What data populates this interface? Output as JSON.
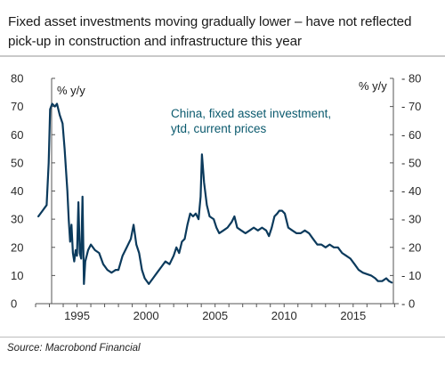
{
  "title": "Fixed asset investments moving gradually lower – have not reflected pick-up in construction and infrastructure this year",
  "source": "Source: Macrobond Financial",
  "chart_data": {
    "type": "line",
    "ylabel_left": "% y/y",
    "ylabel_right": "% y/y",
    "ylim": [
      0,
      80
    ],
    "y_ticks": [
      0,
      10,
      20,
      30,
      40,
      50,
      60,
      70,
      80
    ],
    "x_ticks": [
      "1995",
      "2000",
      "2005",
      "2010",
      "2015"
    ],
    "x_tick_values": [
      1995,
      2000,
      2005,
      2010,
      2015
    ],
    "xlim": [
      1992,
      2018.3
    ],
    "grid": false,
    "series": [
      {
        "name": "China, fixed asset investment, ytd, current prices",
        "color": "#0b3a5c",
        "points": [
          [
            1992.2,
            31
          ],
          [
            1992.5,
            33
          ],
          [
            1992.8,
            35
          ],
          [
            1992.95,
            50
          ],
          [
            1993.05,
            69
          ],
          [
            1993.2,
            71
          ],
          [
            1993.4,
            70
          ],
          [
            1993.55,
            71
          ],
          [
            1993.75,
            67
          ],
          [
            1993.95,
            64
          ],
          [
            1994.1,
            55
          ],
          [
            1994.3,
            40
          ],
          [
            1994.4,
            30
          ],
          [
            1994.5,
            22
          ],
          [
            1994.6,
            28
          ],
          [
            1994.7,
            18
          ],
          [
            1994.8,
            15
          ],
          [
            1994.9,
            19
          ],
          [
            1995.0,
            17
          ],
          [
            1995.1,
            36
          ],
          [
            1995.2,
            18
          ],
          [
            1995.3,
            16
          ],
          [
            1995.4,
            38
          ],
          [
            1995.5,
            7
          ],
          [
            1995.6,
            15
          ],
          [
            1995.8,
            19
          ],
          [
            1996.0,
            21
          ],
          [
            1996.3,
            19
          ],
          [
            1996.6,
            18
          ],
          [
            1996.9,
            14
          ],
          [
            1997.2,
            12
          ],
          [
            1997.5,
            11
          ],
          [
            1997.8,
            12
          ],
          [
            1998.0,
            12
          ],
          [
            1998.3,
            17
          ],
          [
            1998.6,
            20
          ],
          [
            1998.9,
            23
          ],
          [
            1999.1,
            28
          ],
          [
            1999.3,
            21
          ],
          [
            1999.5,
            18
          ],
          [
            1999.7,
            12
          ],
          [
            1999.9,
            9
          ],
          [
            2000.2,
            7
          ],
          [
            2000.5,
            9
          ],
          [
            2000.8,
            11
          ],
          [
            2001.1,
            13
          ],
          [
            2001.4,
            15
          ],
          [
            2001.7,
            14
          ],
          [
            2002.0,
            17
          ],
          [
            2002.2,
            20
          ],
          [
            2002.4,
            18
          ],
          [
            2002.6,
            22
          ],
          [
            2002.8,
            23
          ],
          [
            2003.0,
            28
          ],
          [
            2003.2,
            32
          ],
          [
            2003.4,
            31
          ],
          [
            2003.6,
            32
          ],
          [
            2003.8,
            30
          ],
          [
            2003.95,
            38
          ],
          [
            2004.05,
            53
          ],
          [
            2004.2,
            43
          ],
          [
            2004.4,
            35
          ],
          [
            2004.6,
            31
          ],
          [
            2004.9,
            30
          ],
          [
            2005.1,
            27
          ],
          [
            2005.3,
            25
          ],
          [
            2005.6,
            26
          ],
          [
            2005.9,
            27
          ],
          [
            2006.2,
            29
          ],
          [
            2006.4,
            31
          ],
          [
            2006.6,
            27
          ],
          [
            2006.9,
            26
          ],
          [
            2007.2,
            25
          ],
          [
            2007.5,
            26
          ],
          [
            2007.8,
            27
          ],
          [
            2008.1,
            26
          ],
          [
            2008.4,
            27
          ],
          [
            2008.7,
            26
          ],
          [
            2008.9,
            24
          ],
          [
            2009.1,
            27
          ],
          [
            2009.3,
            31
          ],
          [
            2009.5,
            32
          ],
          [
            2009.65,
            33
          ],
          [
            2009.85,
            33
          ],
          [
            2010.05,
            32
          ],
          [
            2010.3,
            27
          ],
          [
            2010.6,
            26
          ],
          [
            2010.9,
            25
          ],
          [
            2011.2,
            25
          ],
          [
            2011.5,
            26
          ],
          [
            2011.8,
            25
          ],
          [
            2012.1,
            23
          ],
          [
            2012.4,
            21
          ],
          [
            2012.7,
            21
          ],
          [
            2013.0,
            20
          ],
          [
            2013.3,
            21
          ],
          [
            2013.6,
            20
          ],
          [
            2013.9,
            20
          ],
          [
            2014.2,
            18
          ],
          [
            2014.5,
            17
          ],
          [
            2014.8,
            16
          ],
          [
            2015.1,
            14
          ],
          [
            2015.4,
            12
          ],
          [
            2015.7,
            11
          ],
          [
            2016.0,
            10.5
          ],
          [
            2016.3,
            10
          ],
          [
            2016.6,
            9
          ],
          [
            2016.8,
            8
          ],
          [
            2017.1,
            8
          ],
          [
            2017.4,
            9
          ],
          [
            2017.6,
            8
          ],
          [
            2017.8,
            7.5
          ]
        ]
      }
    ],
    "annotation": {
      "text_lines": [
        "China, fixed asset investment,",
        "ytd, current prices"
      ],
      "color": "#0b5a6e"
    }
  }
}
